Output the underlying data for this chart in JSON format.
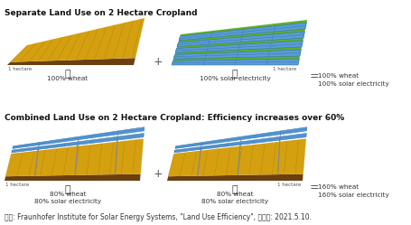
{
  "title1": "Separate Land Use on 2 Hectare Cropland",
  "title2": "Combined Land Use on 2 Hectare Cropland: Efficiency increases over 60%",
  "caption": "자료: Fraunhofer Institute for Solar Energy Systems, \"Land Use Efficiency\", 검색일: 2021.5.10.",
  "bg_color": "#ffffff",
  "wheat_color": "#D4A010",
  "wheat_dark": "#A07808",
  "wheat_mid": "#C49010",
  "solar_blue": "#5B9BD5",
  "solar_blue_light": "#85BBEA",
  "solar_blue_dark": "#2E75B6",
  "green_color": "#5DAF2A",
  "green_dark": "#3D8010",
  "ground_color": "#6B3F10",
  "ground_dark": "#4A2A08",
  "pole_color": "#888888",
  "text_color": "#333333",
  "title_fontsize": 6.5,
  "label_fontsize": 5.2,
  "brace_fontsize": 8,
  "caption_fontsize": 5.5,
  "plus_fontsize": 9,
  "equals_fontsize": 9
}
